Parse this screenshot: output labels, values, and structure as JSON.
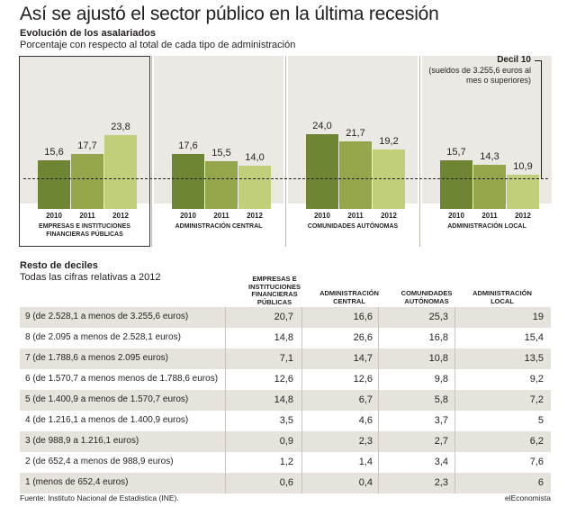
{
  "title": "Así se ajustó el sector público en la última recesión",
  "chart_data": [
    {
      "type": "bar",
      "title": "Evolución de los asalariados",
      "subtitle": "Porcentaje con respecto al total de cada tipo de administración",
      "categories": [
        "2010",
        "2011",
        "2012"
      ],
      "reference_line": "Decil 10",
      "reference_note": "(sueldos de 3.255,6 euros al mes o superiores)",
      "highlighted_group": "EMPRESAS E INSTITUCIONES FINANCIERAS PÚBLICAS",
      "colors": [
        "#6e8533",
        "#93a64b",
        "#c2cf7a"
      ],
      "panel_color": "#ece9e4",
      "groups": [
        {
          "name": "EMPRESAS E INSTITUCIONES FINANCIERAS PÚBLICAS",
          "values": [
            15.6,
            17.7,
            23.8
          ],
          "labels": [
            "15,6",
            "17,7",
            "23,8"
          ]
        },
        {
          "name": "ADMINISTRACIÓN CENTRAL",
          "values": [
            17.6,
            15.5,
            14.0
          ],
          "labels": [
            "17,6",
            "15,5",
            "14,0"
          ]
        },
        {
          "name": "COMUNIDADES AUTÓNOMAS",
          "values": [
            24.0,
            21.7,
            19.2
          ],
          "labels": [
            "24,0",
            "21,7",
            "19,2"
          ]
        },
        {
          "name": "ADMINISTRACIÓN LOCAL",
          "values": [
            15.7,
            14.3,
            10.9
          ],
          "labels": [
            "15,7",
            "14,3",
            "10,9"
          ]
        }
      ]
    },
    {
      "type": "table",
      "title": "Resto de deciles",
      "subtitle": "Todas las cifras relativas a 2012",
      "columns": [
        "EMPRESAS E INSTITUCIONES FINANCIERAS PÚBLICAS",
        "ADMINISTRACIÓN CENTRAL",
        "COMUNIDADES AUTÓNOMAS",
        "ADMINISTRACIÓN LOCAL"
      ],
      "rows": [
        {
          "label": "9 (de 2.528,1 a menos de 3.255,6 euros)",
          "values": [
            "20,7",
            "16,6",
            "25,3",
            "19"
          ]
        },
        {
          "label": "8 (de 2.095 a menos de 2.528,1 euros)",
          "values": [
            "14,8",
            "26,6",
            "16,8",
            "15,4"
          ]
        },
        {
          "label": "7 (de 1.788,6 a menos 2.095 euros)",
          "values": [
            "7,1",
            "14,7",
            "10,8",
            "13,5"
          ]
        },
        {
          "label": "6 (de 1.570,7 a menos menos de 1.788,6 euros)",
          "values": [
            "12,6",
            "12,6",
            "9,8",
            "9,2"
          ]
        },
        {
          "label": "5 (de 1.400,9 a menos de 1.570,7 euros)",
          "values": [
            "14,8",
            "6,7",
            "5,8",
            "7,2"
          ]
        },
        {
          "label": "4 (de 1.216,1 a menos de 1.400,9 euros)",
          "values": [
            "3,5",
            "4,6",
            "3,7",
            "5"
          ]
        },
        {
          "label": "3 (de 988,9 a 1.216,1 euros)",
          "values": [
            "0,9",
            "2,3",
            "2,7",
            "6,2"
          ]
        },
        {
          "label": "2 (de 652,4 a menos de 988,9 euros)",
          "values": [
            "1,2",
            "1,4",
            "3,4",
            "7,6"
          ]
        },
        {
          "label": "1 (menos de 652,4 euros)",
          "values": [
            "0,6",
            "0,4",
            "2,3",
            "6"
          ]
        }
      ],
      "alt_row_color": "#e6e2dc"
    }
  ],
  "footer": {
    "source": "Fuente: Instituto Nacional de Estadística (INE).",
    "brand": "elEconomista"
  }
}
